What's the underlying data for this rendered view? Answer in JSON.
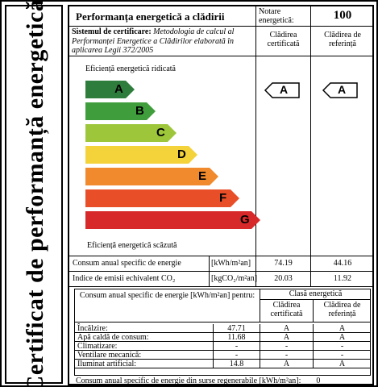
{
  "vertical_title": "Certificat de performanță energetică",
  "header": {
    "title": "Performanța energetică a clădirii",
    "notare_label": "Notare energetică:",
    "score": "100"
  },
  "system": {
    "label": "Sistemul de certificare:",
    "text": " Metodologia de calcul al Performanței Energetice a Clădirilor elaborată în aplicarea Legii 372/2005"
  },
  "columns": {
    "certificata": "Clădirea certificată",
    "referinta": "Clădirea de referință"
  },
  "scale": {
    "top_label": "Eficiență energetică ridicată",
    "bottom_label": "Eficiență energetică scăzută",
    "bars": [
      {
        "letter": "A",
        "color": "#2f7d3c"
      },
      {
        "letter": "B",
        "color": "#3f9e3b"
      },
      {
        "letter": "C",
        "color": "#9dc63b"
      },
      {
        "letter": "D",
        "color": "#f4d23a"
      },
      {
        "letter": "E",
        "color": "#f08a2c"
      },
      {
        "letter": "F",
        "color": "#e84f28"
      },
      {
        "letter": "G",
        "color": "#d8292a"
      }
    ],
    "cert_class": "A",
    "ref_class": "A"
  },
  "rows": [
    {
      "label": "Consum anual specific de energie",
      "unit": "[kWh/m²an]",
      "cert": "74.19",
      "ref": "44.16"
    },
    {
      "label": "Indice de emisii echivalent CO₂",
      "unit": "[kgCO₂/m²an]",
      "cert": "20.03",
      "ref": "11.92"
    }
  ],
  "table": {
    "head_consum": "Consum anual specific de energie [kWh/m²an] pentru:",
    "head_clasa": "Clasă energetică",
    "head_cert": "Clădirea certificată",
    "head_ref": "Clădirea de referință",
    "items": [
      {
        "label": "Încălzire:",
        "value": "47.71",
        "cert": "A",
        "ref": "A"
      },
      {
        "label": "Apă caldă de consum:",
        "value": "11.68",
        "cert": "A",
        "ref": "A"
      },
      {
        "label": "Climatizare:",
        "value": "-",
        "cert": "-",
        "ref": "-"
      },
      {
        "label": "Ventilare mecanică:",
        "value": "-",
        "cert": "-",
        "ref": "-"
      },
      {
        "label": "Iluminat artificial:",
        "value": "14.8",
        "cert": "A",
        "ref": "A"
      }
    ]
  },
  "footer": {
    "label": "Consum anual specific de energie din surse regenerabile [kWh/m²an]:",
    "value": "0"
  }
}
